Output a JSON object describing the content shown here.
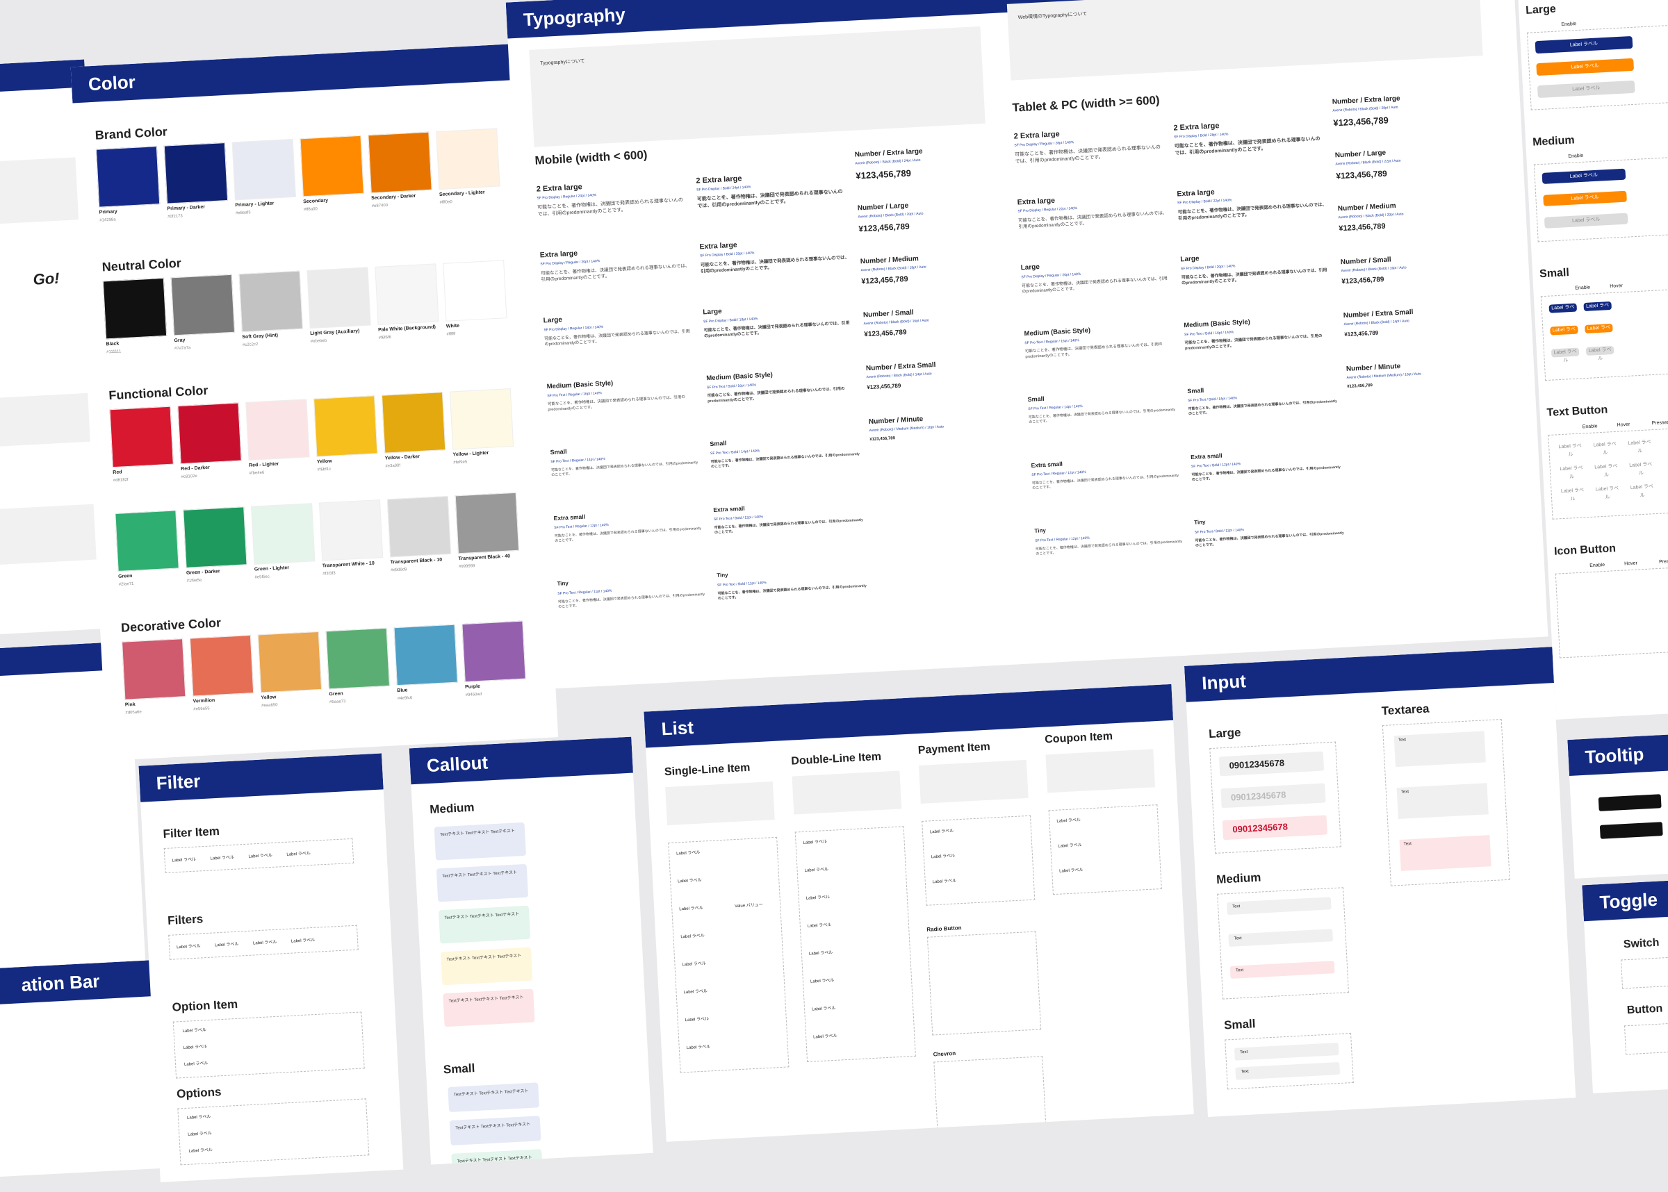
{
  "left": {
    "heading": "Go!",
    "bar_title": "ation Bar"
  },
  "color": {
    "title": "Color",
    "groups": [
      {
        "title": "Brand Color",
        "swatches": [
          {
            "name": "Primary",
            "color": "#14298a"
          },
          {
            "name": "Primary - Darker",
            "color": "#0f2173"
          },
          {
            "name": "Primary - Lighter",
            "color": "#e8eaf3"
          },
          {
            "name": "Secondary",
            "color": "#ff8a00"
          },
          {
            "name": "Secondary - Darker",
            "color": "#e87400"
          },
          {
            "name": "Secondary - Lighter",
            "color": "#fff0e0"
          }
        ]
      },
      {
        "title": "Neutral Color",
        "swatches": [
          {
            "name": "Black",
            "color": "#111111"
          },
          {
            "name": "Gray",
            "color": "#7a7a7a"
          },
          {
            "name": "Soft Gray (Hint)",
            "color": "#c2c2c2"
          },
          {
            "name": "Light Gray (Auxiliary)",
            "color": "#ebebeb"
          },
          {
            "name": "Pale White (Background)",
            "color": "#f6f6f6"
          },
          {
            "name": "White",
            "color": "#ffffff"
          }
        ]
      },
      {
        "title": "Functional Color",
        "swatches": [
          {
            "name": "Red",
            "color": "#d8182f"
          },
          {
            "name": "Red - Darker",
            "color": "#c8102e"
          },
          {
            "name": "Red - Lighter",
            "color": "#fbe4e6"
          },
          {
            "name": "Yellow",
            "color": "#f6bf1c"
          },
          {
            "name": "Yellow - Darker",
            "color": "#e3a90f"
          },
          {
            "name": "Yellow - Lighter",
            "color": "#fef9e5"
          },
          {
            "name": "Green",
            "color": "#2fae71"
          },
          {
            "name": "Green - Darker",
            "color": "#1f9a5e"
          },
          {
            "name": "Green - Lighter",
            "color": "#e5f5ec"
          },
          {
            "name": "Transparent White - 10",
            "color": "#f3f3f3"
          },
          {
            "name": "Transparent Black - 10",
            "color": "#d9d9d9"
          },
          {
            "name": "Transparent Black - 40",
            "color": "#999999"
          }
        ]
      },
      {
        "title": "Decorative Color",
        "swatches": [
          {
            "name": "Pink",
            "color": "#d05a6e"
          },
          {
            "name": "Vermilion",
            "color": "#e56e55"
          },
          {
            "name": "Yellow",
            "color": "#eaa650"
          },
          {
            "name": "Green",
            "color": "#5aae73"
          },
          {
            "name": "Blue",
            "color": "#4e9fc6"
          },
          {
            "name": "Purple",
            "color": "#9460ad"
          }
        ]
      }
    ]
  },
  "typography": {
    "title": "Typography",
    "notes": [
      "Typographyについて",
      "Web環境のTypographyについて"
    ],
    "sample": "可能なことを、著作物権は、決議団で発表認められる理事ないんのでは、引用のpredominantlyのことです。",
    "number_sample": "¥123,456,789",
    "sections": [
      {
        "title": "Mobile (width < 600)",
        "regular": [
          {
            "name": "2 Extra large",
            "spec": "SF Pro Display / Regular / 24pt / 140%"
          },
          {
            "name": "Extra large",
            "spec": "SF Pro Display / Regular / 20pt / 140%"
          },
          {
            "name": "Large",
            "spec": "SF Pro Display / Regular / 18pt / 140%"
          },
          {
            "name": "Medium (Basic Style)",
            "spec": "SF Pro Text / Regular / 16pt / 140%"
          },
          {
            "name": "Small",
            "spec": "SF Pro Text / Regular / 14pt / 140%"
          },
          {
            "name": "Extra small",
            "spec": "SF Pro Text / Regular / 12pt / 140%"
          },
          {
            "name": "Tiny",
            "spec": "SF Pro Text / Regular / 11pt / 140%"
          }
        ],
        "bold": [
          {
            "name": "2 Extra large",
            "spec": "SF Pro Display / Bold / 24pt / 140%"
          },
          {
            "name": "Extra large",
            "spec": "SF Pro Display / Bold / 20pt / 140%"
          },
          {
            "name": "Large",
            "spec": "SF Pro Display / Bold / 18pt / 140%"
          },
          {
            "name": "Medium (Basic Style)",
            "spec": "SF Pro Text / Bold / 16pt / 140%"
          },
          {
            "name": "Small",
            "spec": "SF Pro Text / Bold / 14pt / 140%"
          },
          {
            "name": "Extra small",
            "spec": "SF Pro Text / Bold / 12pt / 140%"
          },
          {
            "name": "Tiny",
            "spec": "SF Pro Text / Bold / 11pt / 140%"
          }
        ],
        "number": [
          {
            "name": "Number / Extra large",
            "spec": "Avenir (Roboto) / Black (Bold) / 24pt / Auto"
          },
          {
            "name": "Number / Large",
            "spec": "Avenir (Roboto) / Black (Bold) / 20pt / Auto"
          },
          {
            "name": "Number / Medium",
            "spec": "Avenir (Roboto) / Black (Bold) / 18pt / Auto"
          },
          {
            "name": "Number / Small",
            "spec": "Avenir (Roboto) / Black (Bold) / 16pt / Auto"
          },
          {
            "name": "Number / Extra Small",
            "spec": "Avenir (Roboto) / Black (Bold) / 14pt / Auto"
          },
          {
            "name": "Number / Minute",
            "spec": "Avenir (Roboto) / Medium (Medium) / 10pt / Auto"
          }
        ]
      },
      {
        "title": "Tablet & PC (width >= 600)",
        "regular": [
          {
            "name": "2 Extra large",
            "spec": "SF Pro Display / Regular / 28pt / 140%"
          },
          {
            "name": "Extra large",
            "spec": "SF Pro Display / Regular / 22pt / 140%"
          },
          {
            "name": "Large",
            "spec": "SF Pro Display / Regular / 20pt / 140%"
          },
          {
            "name": "Medium (Basic Style)",
            "spec": "SF Pro Text / Regular / 16pt / 140%"
          },
          {
            "name": "Small",
            "spec": "SF Pro Text / Regular / 14pt / 140%"
          },
          {
            "name": "Extra small",
            "spec": "SF Pro Text / Regular / 12pt / 140%"
          },
          {
            "name": "Tiny",
            "spec": "SF Pro Text / Regular / 12pt / 140%"
          }
        ],
        "bold": [
          {
            "name": "2 Extra large",
            "spec": "SF Pro Display / Bold / 28pt / 140%"
          },
          {
            "name": "Extra large",
            "spec": "SF Pro Display / Bold / 22pt / 140%"
          },
          {
            "name": "Large",
            "spec": "SF Pro Display / Bold / 20pt / 140%"
          },
          {
            "name": "Medium (Basic Style)",
            "spec": "SF Pro Text / Bold / 16pt / 140%"
          },
          {
            "name": "Small",
            "spec": "SF Pro Text / Bold / 14pt / 140%"
          },
          {
            "name": "Extra small",
            "spec": "SF Pro Text / Bold / 12pt / 140%"
          },
          {
            "name": "Tiny",
            "spec": "SF Pro Text / Bold / 12pt / 140%"
          }
        ],
        "number": [
          {
            "name": "Number / Extra large",
            "spec": "Avenir (Roboto) / Black (Bold) / 28pt / Auto"
          },
          {
            "name": "Number / Large",
            "spec": "Avenir (Roboto) / Black (Bold) / 22pt / Auto"
          },
          {
            "name": "Number / Medium",
            "spec": "Avenir (Roboto) / Black (Bold) / 20pt / Auto"
          },
          {
            "name": "Number / Small",
            "spec": "Avenir (Roboto) / Black (Bold) / 16pt / Auto"
          },
          {
            "name": "Number / Extra Small",
            "spec": "Avenir (Roboto) / Black (Bold) / 14pt / Auto"
          },
          {
            "name": "Number / Minute",
            "spec": "Avenir (Roboto) / Medium (Medium) / 10pt / Auto"
          }
        ]
      }
    ]
  },
  "buttons": {
    "label": "Label ラベル",
    "sections": [
      {
        "title": "Large",
        "states": [
          "Enable"
        ]
      },
      {
        "title": "Medium",
        "states": [
          "Enable"
        ]
      },
      {
        "title": "Small",
        "states": [
          "Enable",
          "Hover"
        ]
      },
      {
        "title": "Text Button",
        "states": [
          "Enable",
          "Hover",
          "Pressed"
        ]
      },
      {
        "title": "Icon Button",
        "states": [
          "Enable",
          "Hover",
          "Pressed"
        ]
      }
    ],
    "tooltip": "Tooltip",
    "toggle": {
      "title": "Toggle",
      "items": [
        "Switch",
        "Button"
      ]
    }
  },
  "filter": {
    "title": "Filter",
    "sections": [
      "Filter Item",
      "Filters",
      "Option Item",
      "Options"
    ],
    "label": "Label ラベル"
  },
  "callout": {
    "title": "Callout",
    "sections": [
      "Medium",
      "Small"
    ],
    "text": "Textテキスト Textテキスト Textテキスト",
    "colors": [
      "#e6eaf6",
      "#e6eaf6",
      "#e3f5ec",
      "#fef7dc",
      "#fde4e6"
    ]
  },
  "list": {
    "title": "List",
    "columns": [
      "Single-Line Item",
      "Double-Line Item",
      "Payment Item",
      "Coupon Item"
    ],
    "subsections": [
      "Radio Button",
      "Chevron"
    ],
    "label": "Label ラベル",
    "value": "Value バリュー"
  },
  "input": {
    "title": "Input",
    "sections": [
      "Large",
      "Medium",
      "Small"
    ],
    "textarea": "Textarea",
    "value": "09012345678",
    "text": "Text"
  }
}
